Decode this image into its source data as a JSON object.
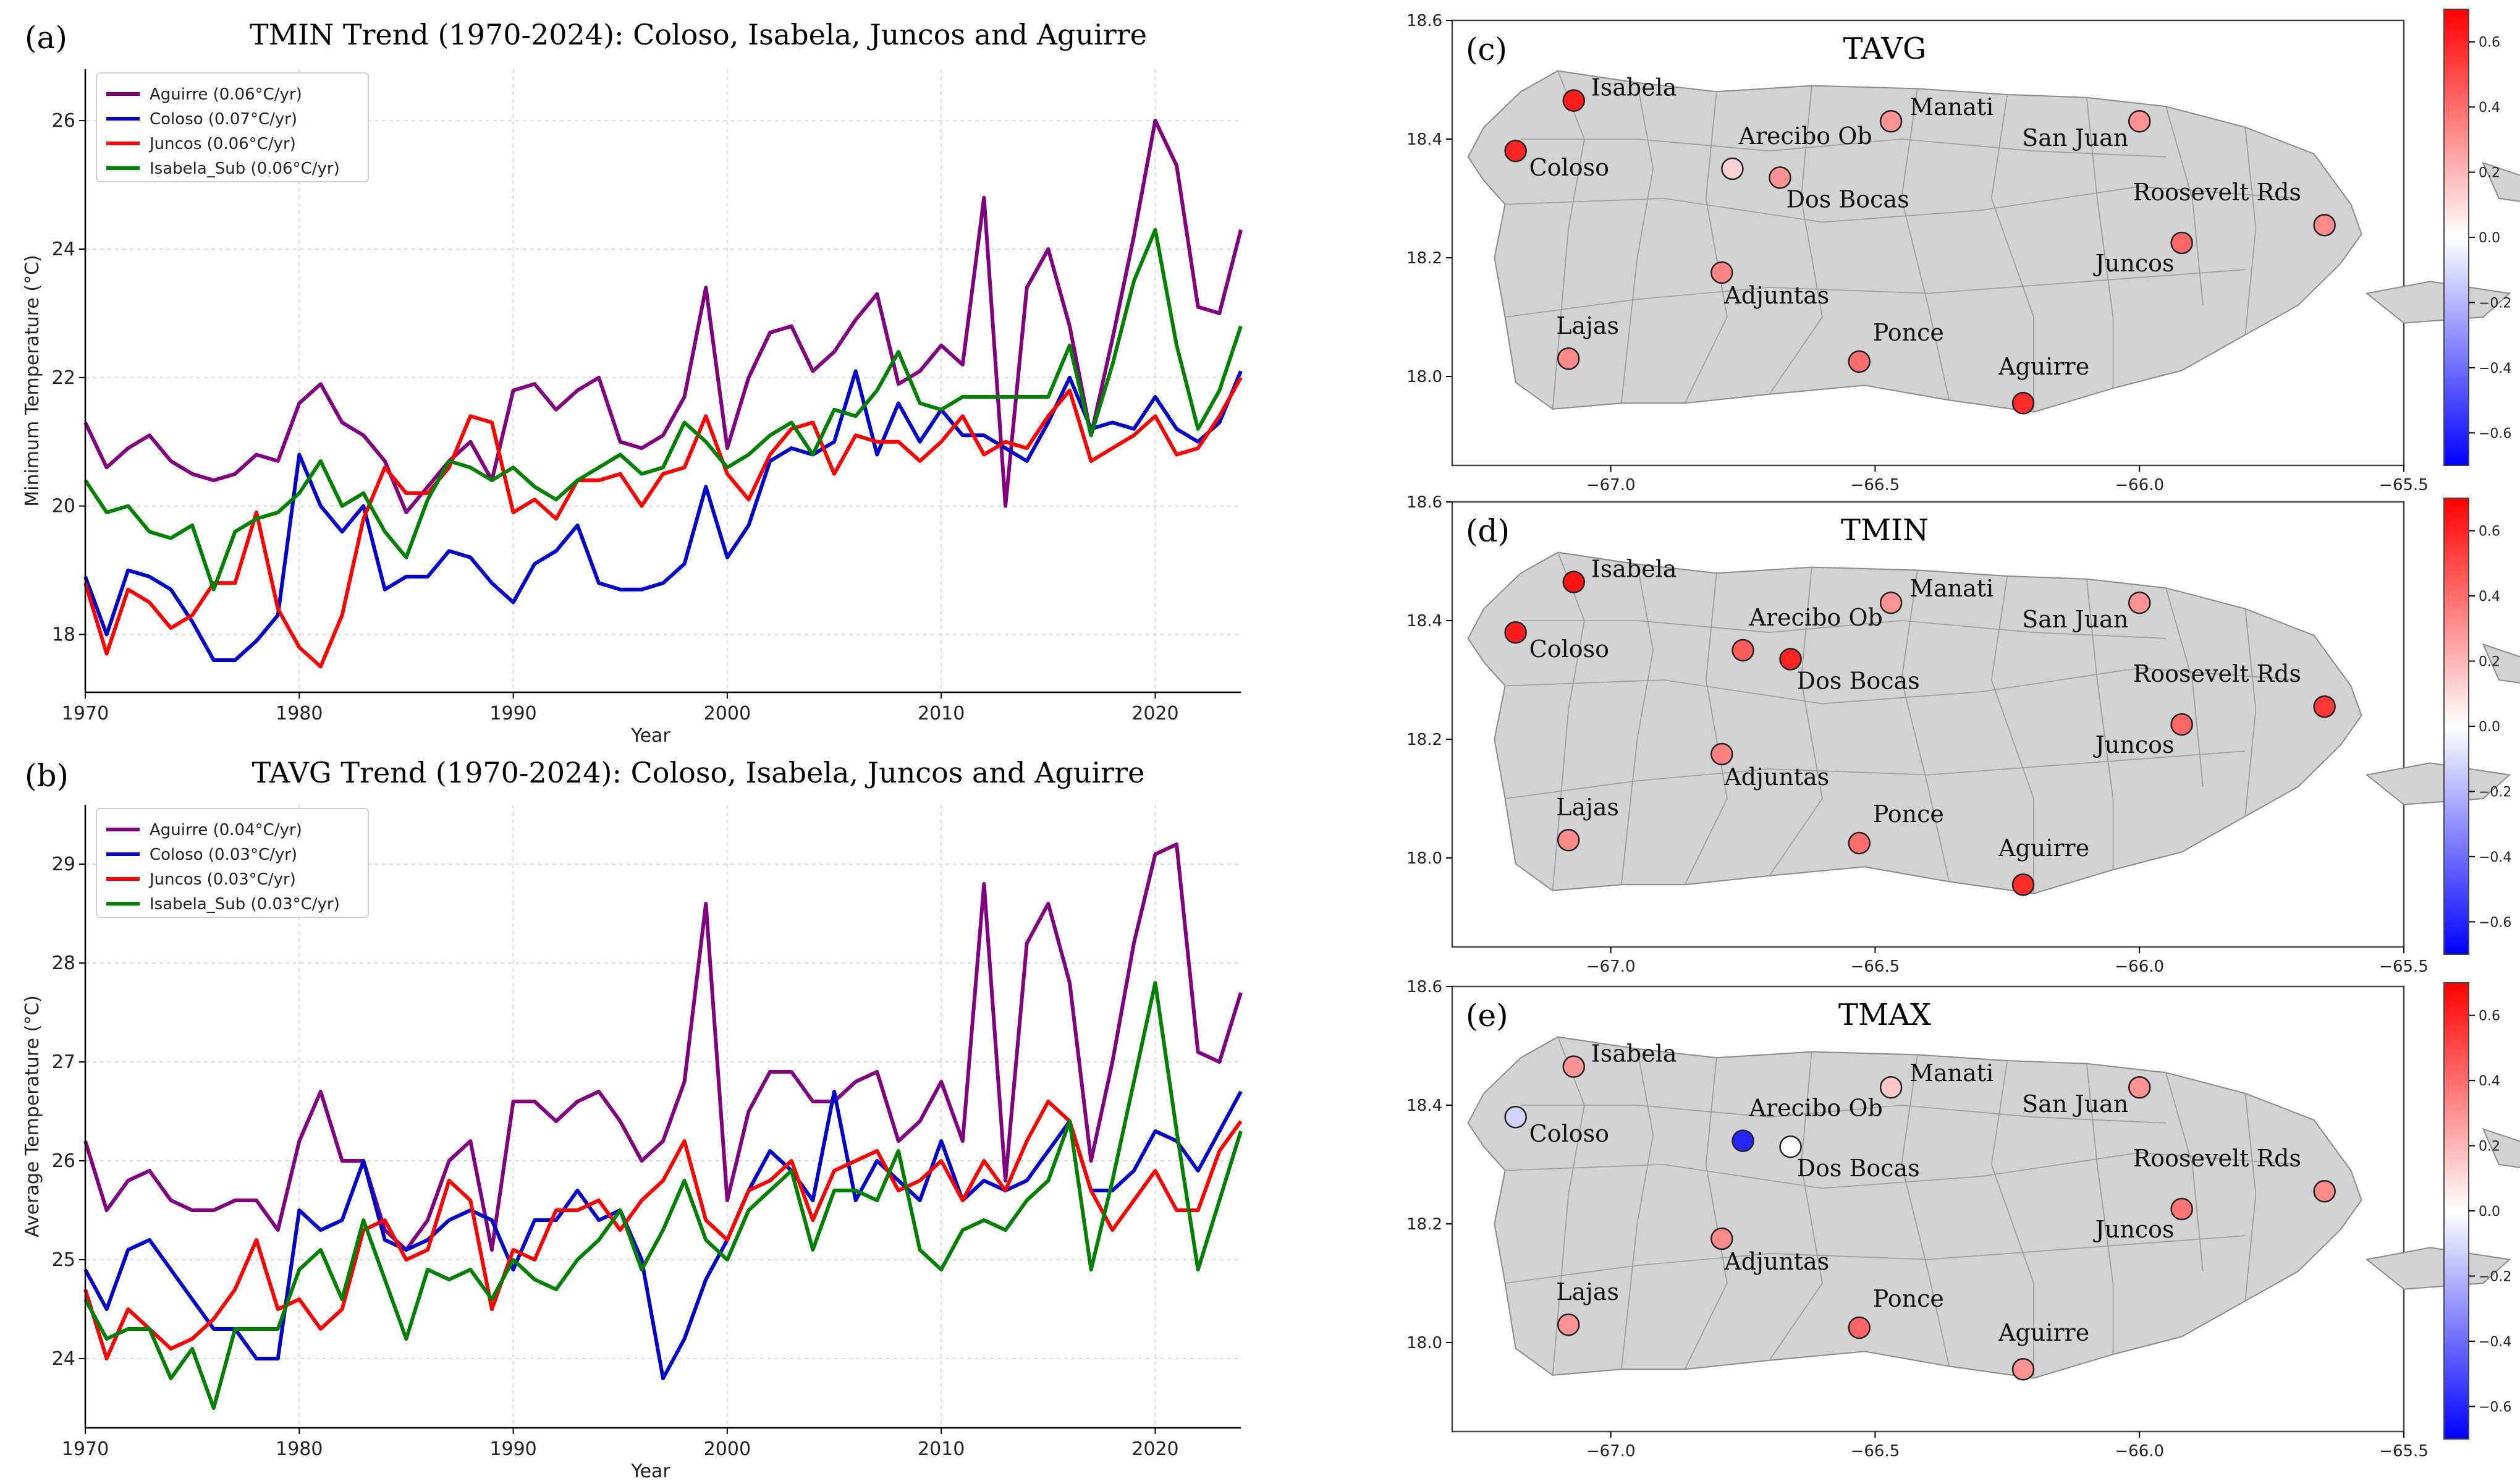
{
  "chart_data": [
    {
      "panel_label": "(a)",
      "type": "line",
      "title": "TMIN Trend (1970-2024): Coloso, Isabela, Juncos and Aguirre",
      "xlabel": "Year",
      "ylabel": "Minimum Temperature (°C)",
      "xlim": [
        1970,
        2024
      ],
      "ylim": [
        17.1,
        26.8
      ],
      "xticks": [
        1970,
        1980,
        1990,
        2000,
        2010,
        2020
      ],
      "yticks": [
        18,
        20,
        22,
        24,
        26
      ],
      "grid": true,
      "legend_position": "top-left",
      "x": [
        1970,
        1971,
        1972,
        1973,
        1974,
        1975,
        1976,
        1977,
        1978,
        1979,
        1980,
        1981,
        1982,
        1983,
        1984,
        1985,
        1986,
        1987,
        1988,
        1989,
        1990,
        1991,
        1992,
        1993,
        1994,
        1995,
        1996,
        1997,
        1998,
        1999,
        2000,
        2001,
        2002,
        2003,
        2004,
        2005,
        2006,
        2007,
        2008,
        2009,
        2010,
        2011,
        2012,
        2013,
        2014,
        2015,
        2016,
        2017,
        2018,
        2019,
        2020,
        2021,
        2022,
        2023,
        2024
      ],
      "series": [
        {
          "name": "Aguirre (0.06°C/yr)",
          "color": "#800080",
          "values": [
            21.3,
            20.6,
            20.9,
            21.1,
            20.7,
            20.5,
            20.4,
            20.5,
            20.8,
            20.7,
            21.6,
            21.9,
            21.3,
            21.1,
            20.7,
            19.9,
            20.3,
            20.7,
            21.0,
            20.4,
            21.8,
            21.9,
            21.5,
            21.8,
            22.0,
            21.0,
            20.9,
            21.1,
            21.7,
            23.4,
            20.9,
            22.0,
            22.7,
            22.8,
            22.1,
            22.4,
            22.9,
            23.3,
            21.9,
            22.1,
            22.5,
            22.2,
            24.8,
            20.0,
            23.4,
            24.0,
            22.8,
            21.1,
            22.6,
            24.2,
            26.0,
            25.3,
            23.1,
            23.0,
            24.3
          ]
        },
        {
          "name": "Coloso (0.07°C/yr)",
          "color": "#0000cc",
          "values": [
            18.9,
            18.0,
            19.0,
            18.9,
            18.7,
            18.2,
            17.6,
            17.6,
            17.9,
            18.3,
            20.8,
            20.0,
            19.6,
            20.0,
            18.7,
            18.9,
            18.9,
            19.3,
            19.2,
            18.8,
            18.5,
            19.1,
            19.3,
            19.7,
            18.8,
            18.7,
            18.7,
            18.8,
            19.1,
            20.3,
            19.2,
            19.7,
            20.7,
            20.9,
            20.8,
            21.0,
            22.1,
            20.8,
            21.6,
            21.0,
            21.5,
            21.1,
            21.1,
            20.9,
            20.7,
            21.3,
            22.0,
            21.2,
            21.3,
            21.2,
            21.7,
            21.2,
            21.0,
            21.3,
            22.1
          ]
        },
        {
          "name": "Juncos (0.06°C/yr)",
          "color": "#ff0000",
          "values": [
            18.8,
            17.7,
            18.7,
            18.5,
            18.1,
            18.3,
            18.8,
            18.8,
            19.9,
            18.4,
            17.8,
            17.5,
            18.3,
            19.8,
            20.6,
            20.2,
            20.2,
            20.6,
            21.4,
            21.3,
            19.9,
            20.1,
            19.8,
            20.4,
            20.4,
            20.5,
            20.0,
            20.5,
            20.6,
            21.4,
            20.5,
            20.1,
            20.8,
            21.2,
            21.3,
            20.5,
            21.1,
            21.0,
            21.0,
            20.7,
            21.0,
            21.4,
            20.8,
            21.0,
            20.9,
            21.4,
            21.8,
            20.7,
            20.9,
            21.1,
            21.4,
            20.8,
            20.9,
            21.4,
            22.0
          ]
        },
        {
          "name": "Isabela_Sub (0.06°C/yr)",
          "color": "#008000",
          "values": [
            20.4,
            19.9,
            20.0,
            19.6,
            19.5,
            19.7,
            18.7,
            19.6,
            19.8,
            19.9,
            20.2,
            20.7,
            20.0,
            20.2,
            19.6,
            19.2,
            20.1,
            20.7,
            20.6,
            20.4,
            20.6,
            20.3,
            20.1,
            20.4,
            20.6,
            20.8,
            20.5,
            20.6,
            21.3,
            21.0,
            20.6,
            20.8,
            21.1,
            21.3,
            20.8,
            21.5,
            21.4,
            21.8,
            22.4,
            21.6,
            21.5,
            21.7,
            21.7,
            21.7,
            21.7,
            21.7,
            22.5,
            21.1,
            22.2,
            23.5,
            24.3,
            22.5,
            21.2,
            21.8,
            22.8
          ]
        }
      ]
    },
    {
      "panel_label": "(b)",
      "type": "line",
      "title": "TAVG Trend (1970-2024): Coloso, Isabela, Juncos and Aguirre",
      "xlabel": "Year",
      "ylabel": "Average Temperature (°C)",
      "xlim": [
        1970,
        2024
      ],
      "ylim": [
        23.3,
        29.6
      ],
      "xticks": [
        1970,
        1980,
        1990,
        2000,
        2010,
        2020
      ],
      "yticks": [
        24,
        25,
        26,
        27,
        28,
        29
      ],
      "grid": true,
      "legend_position": "top-left",
      "x": [
        1970,
        1971,
        1972,
        1973,
        1974,
        1975,
        1976,
        1977,
        1978,
        1979,
        1980,
        1981,
        1982,
        1983,
        1984,
        1985,
        1986,
        1987,
        1988,
        1989,
        1990,
        1991,
        1992,
        1993,
        1994,
        1995,
        1996,
        1997,
        1998,
        1999,
        2000,
        2001,
        2002,
        2003,
        2004,
        2005,
        2006,
        2007,
        2008,
        2009,
        2010,
        2011,
        2012,
        2013,
        2014,
        2015,
        2016,
        2017,
        2018,
        2019,
        2020,
        2021,
        2022,
        2023,
        2024
      ],
      "series": [
        {
          "name": "Aguirre (0.04°C/yr)",
          "color": "#800080",
          "values": [
            26.2,
            25.5,
            25.8,
            25.9,
            25.6,
            25.5,
            25.5,
            25.6,
            25.6,
            25.3,
            26.2,
            26.7,
            26.0,
            26.0,
            25.3,
            25.1,
            25.4,
            26.0,
            26.2,
            25.1,
            26.6,
            26.6,
            26.4,
            26.6,
            26.7,
            26.4,
            26.0,
            26.2,
            26.8,
            28.6,
            25.6,
            26.5,
            26.9,
            26.9,
            26.6,
            26.6,
            26.8,
            26.9,
            26.2,
            26.4,
            26.8,
            26.2,
            28.8,
            25.8,
            28.2,
            28.6,
            27.8,
            26.0,
            27.0,
            28.2,
            29.1,
            29.2,
            27.1,
            27.0,
            27.7
          ]
        },
        {
          "name": "Coloso (0.03°C/yr)",
          "color": "#0000cc",
          "values": [
            24.9,
            24.5,
            25.1,
            25.2,
            24.9,
            24.6,
            24.3,
            24.3,
            24.0,
            24.0,
            25.5,
            25.3,
            25.4,
            26.0,
            25.2,
            25.1,
            25.2,
            25.4,
            25.5,
            25.4,
            24.9,
            25.4,
            25.4,
            25.7,
            25.4,
            25.5,
            25.0,
            23.8,
            24.2,
            24.8,
            25.2,
            25.7,
            26.1,
            25.9,
            25.6,
            26.7,
            25.6,
            26.0,
            25.8,
            25.6,
            26.2,
            25.6,
            25.8,
            25.7,
            25.8,
            26.1,
            26.4,
            25.7,
            25.7,
            25.9,
            26.3,
            26.2,
            25.9,
            26.3,
            26.7
          ]
        },
        {
          "name": "Juncos (0.03°C/yr)",
          "color": "#ff0000",
          "values": [
            24.7,
            24.0,
            24.5,
            24.3,
            24.1,
            24.2,
            24.4,
            24.7,
            25.2,
            24.5,
            24.6,
            24.3,
            24.5,
            25.3,
            25.4,
            25.0,
            25.1,
            25.8,
            25.6,
            24.5,
            25.1,
            25.0,
            25.5,
            25.5,
            25.6,
            25.3,
            25.6,
            25.8,
            26.2,
            25.4,
            25.2,
            25.7,
            25.8,
            26.0,
            25.4,
            25.9,
            26.0,
            26.1,
            25.7,
            25.8,
            26.0,
            25.6,
            26.0,
            25.7,
            26.2,
            26.6,
            26.4,
            25.7,
            25.3,
            25.6,
            25.9,
            25.5,
            25.5,
            26.1,
            26.4
          ]
        },
        {
          "name": "Isabela_Sub (0.03°C/yr)",
          "color": "#008000",
          "values": [
            24.6,
            24.2,
            24.3,
            24.3,
            23.8,
            24.1,
            23.5,
            24.3,
            24.3,
            24.3,
            24.9,
            25.1,
            24.6,
            25.4,
            24.8,
            24.2,
            24.9,
            24.8,
            24.9,
            24.6,
            25.0,
            24.8,
            24.7,
            25.0,
            25.2,
            25.5,
            24.9,
            25.3,
            25.8,
            25.2,
            25.0,
            25.5,
            25.7,
            25.9,
            25.1,
            25.7,
            25.7,
            25.6,
            26.1,
            25.1,
            24.9,
            25.3,
            25.4,
            25.3,
            25.6,
            25.8,
            26.4,
            24.9,
            25.8,
            26.8,
            27.8,
            26.3,
            24.9,
            25.6,
            26.3
          ]
        }
      ]
    },
    {
      "panel_label": "(c)",
      "type": "scatter",
      "map_title": "TAVG",
      "xlim": [
        -67.3,
        -65.5
      ],
      "ylim": [
        17.85,
        18.6
      ],
      "xticks": [
        -67.0,
        -66.5,
        -66.0,
        -65.5
      ],
      "xtick_labels": [
        "−67.0",
        "−66.5",
        "−66.0",
        "−65.5"
      ],
      "yticks": [
        18.0,
        18.2,
        18.4,
        18.6
      ],
      "colorbar": {
        "range": [
          -0.7,
          0.7
        ],
        "ticks": [
          "0.6",
          "0.4",
          "0.2",
          "0.0",
          "−0.2",
          "−0.4",
          "−0.6"
        ]
      },
      "stations": [
        {
          "name": "Isabela",
          "lon": -67.07,
          "lat": 18.465,
          "value": 0.62
        },
        {
          "name": "Coloso",
          "lon": -67.18,
          "lat": 18.38,
          "value": 0.6
        },
        {
          "name": "Arecibo Ob",
          "lon": -66.77,
          "lat": 18.35,
          "value": 0.12
        },
        {
          "name": "Dos Bocas",
          "lon": -66.68,
          "lat": 18.335,
          "value": 0.3
        },
        {
          "name": "Manati",
          "lon": -66.47,
          "lat": 18.43,
          "value": 0.3
        },
        {
          "name": "San Juan",
          "lon": -66.0,
          "lat": 18.43,
          "value": 0.3
        },
        {
          "name": "Roosevelt Rds",
          "lon": -65.65,
          "lat": 18.255,
          "value": 0.32
        },
        {
          "name": "Juncos",
          "lon": -65.92,
          "lat": 18.225,
          "value": 0.42
        },
        {
          "name": "Adjuntas",
          "lon": -66.79,
          "lat": 18.175,
          "value": 0.34
        },
        {
          "name": "Lajas",
          "lon": -67.08,
          "lat": 18.03,
          "value": 0.32
        },
        {
          "name": "Ponce",
          "lon": -66.53,
          "lat": 18.025,
          "value": 0.4
        },
        {
          "name": "Aguirre",
          "lon": -66.22,
          "lat": 17.955,
          "value": 0.58
        }
      ]
    },
    {
      "panel_label": "(d)",
      "type": "scatter",
      "map_title": "TMIN",
      "xlim": [
        -67.3,
        -65.5
      ],
      "ylim": [
        17.85,
        18.6
      ],
      "xticks": [
        -67.0,
        -66.5,
        -66.0,
        -65.5
      ],
      "xtick_labels": [
        "−67.0",
        "−66.5",
        "−66.0",
        "−65.5"
      ],
      "yticks": [
        18.0,
        18.2,
        18.4,
        18.6
      ],
      "colorbar": {
        "range": [
          -0.7,
          0.7
        ],
        "ticks": [
          "0.6",
          "0.4",
          "0.2",
          "0.0",
          "−0.2",
          "−0.4",
          "−0.6"
        ]
      },
      "stations": [
        {
          "name": "Isabela",
          "lon": -67.07,
          "lat": 18.465,
          "value": 0.65
        },
        {
          "name": "Coloso",
          "lon": -67.18,
          "lat": 18.38,
          "value": 0.62
        },
        {
          "name": "Arecibo Ob",
          "lon": -66.75,
          "lat": 18.35,
          "value": 0.45
        },
        {
          "name": "Dos Bocas",
          "lon": -66.66,
          "lat": 18.335,
          "value": 0.6
        },
        {
          "name": "Manati",
          "lon": -66.47,
          "lat": 18.43,
          "value": 0.3
        },
        {
          "name": "San Juan",
          "lon": -66.0,
          "lat": 18.43,
          "value": 0.3
        },
        {
          "name": "Roosevelt Rds",
          "lon": -65.65,
          "lat": 18.255,
          "value": 0.55
        },
        {
          "name": "Juncos",
          "lon": -65.92,
          "lat": 18.225,
          "value": 0.42
        },
        {
          "name": "Adjuntas",
          "lon": -66.79,
          "lat": 18.175,
          "value": 0.34
        },
        {
          "name": "Lajas",
          "lon": -67.08,
          "lat": 18.03,
          "value": 0.32
        },
        {
          "name": "Ponce",
          "lon": -66.53,
          "lat": 18.025,
          "value": 0.4
        },
        {
          "name": "Aguirre",
          "lon": -66.22,
          "lat": 17.955,
          "value": 0.58
        }
      ]
    },
    {
      "panel_label": "(e)",
      "type": "scatter",
      "map_title": "TMAX",
      "xlim": [
        -67.3,
        -65.5
      ],
      "ylim": [
        17.85,
        18.6
      ],
      "xticks": [
        -67.0,
        -66.5,
        -66.0,
        -65.5
      ],
      "xtick_labels": [
        "−67.0",
        "−66.5",
        "−66.0",
        "−65.5"
      ],
      "yticks": [
        18.0,
        18.2,
        18.4,
        18.6
      ],
      "colorbar": {
        "range": [
          -0.7,
          0.7
        ],
        "ticks": [
          "0.6",
          "0.4",
          "0.2",
          "0.0",
          "−0.2",
          "−0.4",
          "−0.6"
        ]
      },
      "stations": [
        {
          "name": "Isabela",
          "lon": -67.07,
          "lat": 18.465,
          "value": 0.3
        },
        {
          "name": "Coloso",
          "lon": -67.18,
          "lat": 18.38,
          "value": -0.12
        },
        {
          "name": "Arecibo Ob",
          "lon": -66.75,
          "lat": 18.34,
          "value": -0.6
        },
        {
          "name": "Dos Bocas",
          "lon": -66.66,
          "lat": 18.33,
          "value": 0.0
        },
        {
          "name": "Manati",
          "lon": -66.47,
          "lat": 18.43,
          "value": 0.15
        },
        {
          "name": "San Juan",
          "lon": -66.0,
          "lat": 18.43,
          "value": 0.3
        },
        {
          "name": "Roosevelt Rds",
          "lon": -65.65,
          "lat": 18.255,
          "value": 0.32
        },
        {
          "name": "Juncos",
          "lon": -65.92,
          "lat": 18.225,
          "value": 0.38
        },
        {
          "name": "Adjuntas",
          "lon": -66.79,
          "lat": 18.175,
          "value": 0.32
        },
        {
          "name": "Lajas",
          "lon": -67.08,
          "lat": 18.03,
          "value": 0.3
        },
        {
          "name": "Ponce",
          "lon": -66.53,
          "lat": 18.025,
          "value": 0.42
        },
        {
          "name": "Aguirre",
          "lon": -66.22,
          "lat": 17.955,
          "value": 0.3
        }
      ]
    }
  ]
}
